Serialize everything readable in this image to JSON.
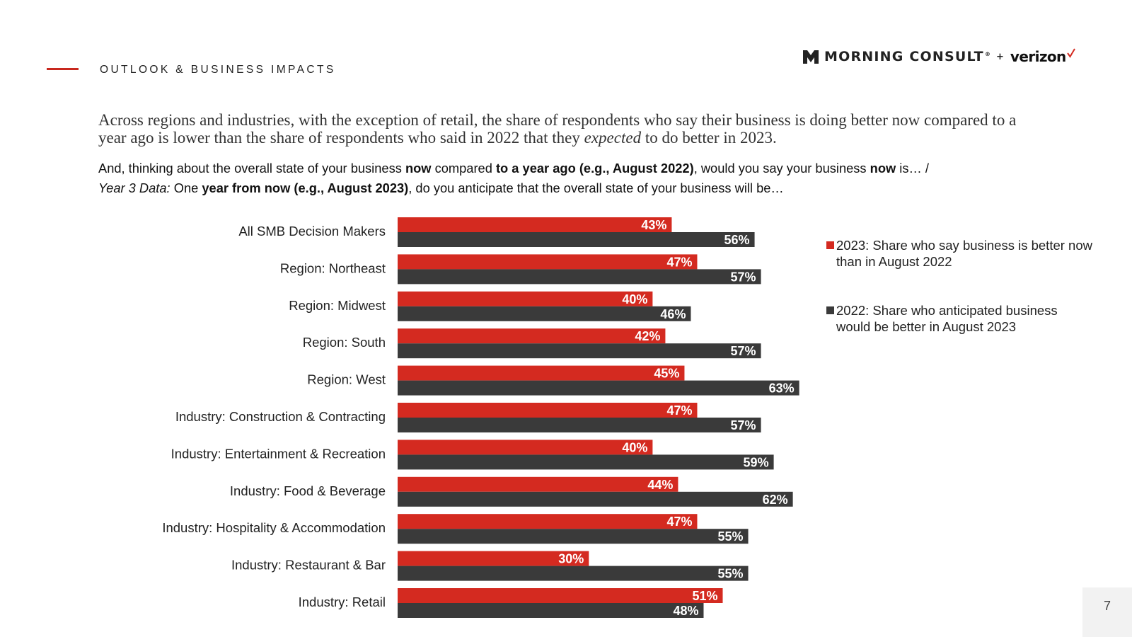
{
  "header": {
    "section_title": "OUTLOOK & BUSINESS IMPACTS",
    "logo_text": "MORNING CONSULT",
    "logo_plus": "+",
    "logo_partner": "verizon"
  },
  "headline": {
    "part1": "Across regions and industries, with the exception of retail, the share of respondents who say their business is doing better now compared to a year ago is lower than the share of respondents who said in 2022 that they ",
    "emphasis": "expected",
    "part2": " to do better in 2023."
  },
  "question": {
    "t1": "And, thinking about the overall state of your business ",
    "b1": "now",
    "t2": " compared ",
    "b2": "to a year ago (e.g., August 2022)",
    "t3": ", would you say your business ",
    "b3": "now",
    "t4": " is… / ",
    "i1": "Year 3 Data:",
    "t5": " One ",
    "b4": "year from now (e.g., August 2023)",
    "t6": ", do you anticipate that the overall state of your business will be…"
  },
  "colors": {
    "accent": "#d42a20",
    "dark": "#3a3a3a"
  },
  "chart_data": {
    "type": "bar",
    "orientation": "horizontal",
    "categories": [
      "All SMB Decision Makers",
      "Region: Northeast",
      "Region: Midwest",
      "Region: South",
      "Region: West",
      "Industry: Construction & Contracting",
      "Industry: Entertainment & Recreation",
      "Industry: Food & Beverage",
      "Industry: Hospitality & Accommodation",
      "Industry: Restaurant & Bar",
      "Industry: Retail"
    ],
    "series": [
      {
        "name": "2023: Share who say business is better now than in August 2022",
        "color": "#d42a20",
        "values": [
          43,
          47,
          40,
          42,
          45,
          47,
          40,
          44,
          47,
          30,
          51
        ],
        "labels": [
          "43%",
          "47%",
          "40%",
          "42%",
          "45%",
          "47%",
          "40%",
          "44%",
          "47%",
          "30%",
          "51%"
        ]
      },
      {
        "name": "2022: Share who anticipated business would be better in August 2023",
        "color": "#3a3a3a",
        "values": [
          56,
          57,
          46,
          57,
          63,
          57,
          59,
          62,
          55,
          55,
          48
        ],
        "labels": [
          "56%",
          "57%",
          "46%",
          "57%",
          "63%",
          "57%",
          "59%",
          "62%",
          "55%",
          "55%",
          "48%"
        ]
      }
    ],
    "xlim": [
      0,
      100
    ],
    "legend_position": "right",
    "grid": false
  },
  "page_number": "7"
}
